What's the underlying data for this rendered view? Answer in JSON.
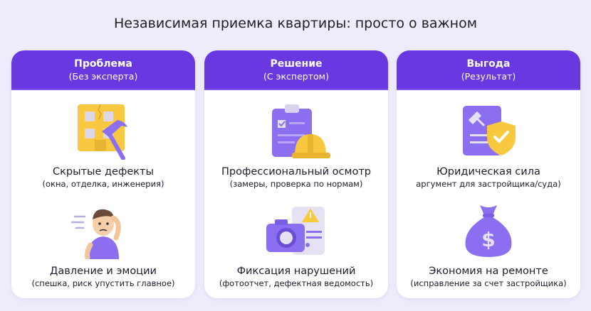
{
  "title": "Независимая приемка квартиры: просто о важном",
  "colors": {
    "accent": "#6a38e0",
    "background": "#eeebfb",
    "icon_purple": "#8b6ff0",
    "icon_yellow": "#f8c93e"
  },
  "columns": [
    {
      "heading": "Проблема",
      "subheading": "(Без эксперта)",
      "items": [
        {
          "icon": "cracked-building-hammer-icon",
          "title": "Скрытые дефекты",
          "subtitle": "(окна, отделка, инженерия)"
        },
        {
          "icon": "stressed-person-icon",
          "title": "Давление и эмоции",
          "subtitle": "(спешка, риск упустить главное)"
        }
      ]
    },
    {
      "heading": "Решение",
      "subheading": "(С экспертом)",
      "items": [
        {
          "icon": "clipboard-hardhat-icon",
          "title": "Профессиональный осмотр",
          "subtitle": "(замеры, проверка по нормам)"
        },
        {
          "icon": "camera-warning-icon",
          "title": "Фиксация нарушений",
          "subtitle": "(фотоотчет, дефектная ведомость)"
        }
      ]
    },
    {
      "heading": "Выгода",
      "subheading": "(Результат)",
      "items": [
        {
          "icon": "legal-document-shield-icon",
          "title": "Юридическая сила",
          "subtitle": "аргумент для застройщика/суда)"
        },
        {
          "icon": "money-bag-icon",
          "title": "Экономия на ремонте",
          "subtitle": "(исправление за счет застройщика)"
        }
      ]
    }
  ]
}
